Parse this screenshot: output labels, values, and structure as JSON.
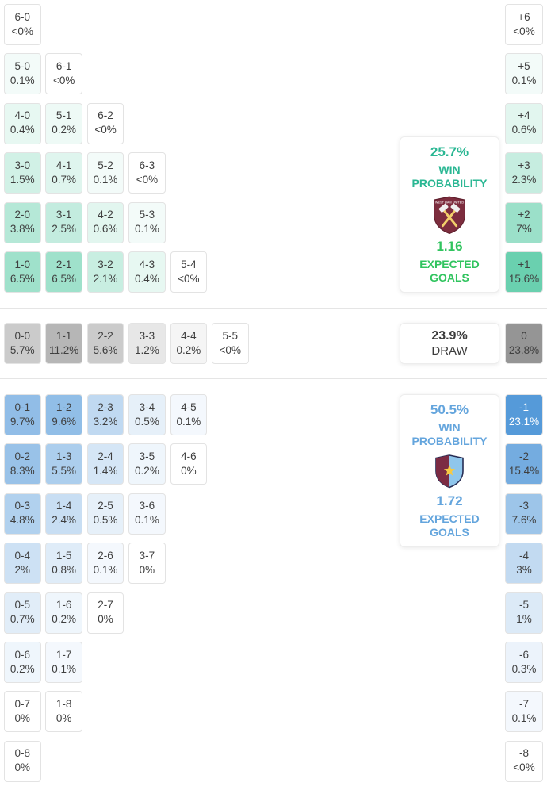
{
  "chart_data": {
    "type": "heatmap",
    "description": "Correct-score probability matrix with goal-difference column and win probability panels",
    "home": {
      "team": "West Ham United",
      "badge_text": "WEST HAM UNITED",
      "win_probability": "25.7%",
      "win_probability_label": "WIN PROBABILITY",
      "expected_goals": "1.16",
      "expected_goals_label": "EXPECTED GOALS",
      "accent": "#2fbe8f",
      "text_color": "#2ab793",
      "eg_color": "#31c45f",
      "rows": [
        [
          {
            "score": "6-0",
            "pct": "<0%",
            "value": 0
          }
        ],
        [
          {
            "score": "5-0",
            "pct": "0.1%",
            "value": 0.1
          },
          {
            "score": "6-1",
            "pct": "<0%",
            "value": 0
          }
        ],
        [
          {
            "score": "4-0",
            "pct": "0.4%",
            "value": 0.4
          },
          {
            "score": "5-1",
            "pct": "0.2%",
            "value": 0.2
          },
          {
            "score": "6-2",
            "pct": "<0%",
            "value": 0
          }
        ],
        [
          {
            "score": "3-0",
            "pct": "1.5%",
            "value": 1.5
          },
          {
            "score": "4-1",
            "pct": "0.7%",
            "value": 0.7
          },
          {
            "score": "5-2",
            "pct": "0.1%",
            "value": 0.1
          },
          {
            "score": "6-3",
            "pct": "<0%",
            "value": 0
          }
        ],
        [
          {
            "score": "2-0",
            "pct": "3.8%",
            "value": 3.8
          },
          {
            "score": "3-1",
            "pct": "2.5%",
            "value": 2.5
          },
          {
            "score": "4-2",
            "pct": "0.6%",
            "value": 0.6
          },
          {
            "score": "5-3",
            "pct": "0.1%",
            "value": 0.1
          }
        ],
        [
          {
            "score": "1-0",
            "pct": "6.5%",
            "value": 6.5
          },
          {
            "score": "2-1",
            "pct": "6.5%",
            "value": 6.5
          },
          {
            "score": "3-2",
            "pct": "2.1%",
            "value": 2.1
          },
          {
            "score": "4-3",
            "pct": "0.4%",
            "value": 0.4
          },
          {
            "score": "5-4",
            "pct": "<0%",
            "value": 0
          }
        ]
      ],
      "diffs": [
        {
          "diff": "+6",
          "pct": "<0%",
          "value": 0
        },
        {
          "diff": "+5",
          "pct": "0.1%",
          "value": 0.1
        },
        {
          "diff": "+4",
          "pct": "0.6%",
          "value": 0.6
        },
        {
          "diff": "+3",
          "pct": "2.3%",
          "value": 2.3
        },
        {
          "diff": "+2",
          "pct": "7%",
          "value": 7
        },
        {
          "diff": "+1",
          "pct": "15.6%",
          "value": 15.6
        }
      ]
    },
    "draw": {
      "probability": "23.9%",
      "label": "DRAW",
      "accent": "#878787",
      "text_color": "#3b3b3b",
      "rows": [
        [
          {
            "score": "0-0",
            "pct": "5.7%",
            "value": 5.7
          },
          {
            "score": "1-1",
            "pct": "11.2%",
            "value": 11.2
          },
          {
            "score": "2-2",
            "pct": "5.6%",
            "value": 5.6
          },
          {
            "score": "3-3",
            "pct": "1.2%",
            "value": 1.2
          },
          {
            "score": "4-4",
            "pct": "0.2%",
            "value": 0.2
          },
          {
            "score": "5-5",
            "pct": "<0%",
            "value": 0
          }
        ]
      ],
      "diffs": [
        {
          "diff": "0",
          "pct": "23.8%",
          "value": 23.8
        }
      ]
    },
    "away": {
      "team": "Aston Villa",
      "win_probability": "50.5%",
      "win_probability_label": "WIN PROBABILITY",
      "expected_goals": "1.72",
      "expected_goals_label": "EXPECTED GOALS",
      "accent": "#3c8bd4",
      "text_color": "#64a5dd",
      "eg_color": "#64a5dd",
      "white_text_over": 18,
      "rows": [
        [
          {
            "score": "0-1",
            "pct": "9.7%",
            "value": 9.7
          },
          {
            "score": "1-2",
            "pct": "9.6%",
            "value": 9.6
          },
          {
            "score": "2-3",
            "pct": "3.2%",
            "value": 3.2
          },
          {
            "score": "3-4",
            "pct": "0.5%",
            "value": 0.5
          },
          {
            "score": "4-5",
            "pct": "0.1%",
            "value": 0.1
          }
        ],
        [
          {
            "score": "0-2",
            "pct": "8.3%",
            "value": 8.3
          },
          {
            "score": "1-3",
            "pct": "5.5%",
            "value": 5.5
          },
          {
            "score": "2-4",
            "pct": "1.4%",
            "value": 1.4
          },
          {
            "score": "3-5",
            "pct": "0.2%",
            "value": 0.2
          },
          {
            "score": "4-6",
            "pct": "0%",
            "value": 0
          }
        ],
        [
          {
            "score": "0-3",
            "pct": "4.8%",
            "value": 4.8
          },
          {
            "score": "1-4",
            "pct": "2.4%",
            "value": 2.4
          },
          {
            "score": "2-5",
            "pct": "0.5%",
            "value": 0.5
          },
          {
            "score": "3-6",
            "pct": "0.1%",
            "value": 0.1
          }
        ],
        [
          {
            "score": "0-4",
            "pct": "2%",
            "value": 2
          },
          {
            "score": "1-5",
            "pct": "0.8%",
            "value": 0.8
          },
          {
            "score": "2-6",
            "pct": "0.1%",
            "value": 0.1
          },
          {
            "score": "3-7",
            "pct": "0%",
            "value": 0
          }
        ],
        [
          {
            "score": "0-5",
            "pct": "0.7%",
            "value": 0.7
          },
          {
            "score": "1-6",
            "pct": "0.2%",
            "value": 0.2
          },
          {
            "score": "2-7",
            "pct": "0%",
            "value": 0
          }
        ],
        [
          {
            "score": "0-6",
            "pct": "0.2%",
            "value": 0.2
          },
          {
            "score": "1-7",
            "pct": "0.1%",
            "value": 0.1
          }
        ],
        [
          {
            "score": "0-7",
            "pct": "0%",
            "value": 0
          },
          {
            "score": "1-8",
            "pct": "0%",
            "value": 0
          }
        ],
        [
          {
            "score": "0-8",
            "pct": "0%",
            "value": 0
          }
        ]
      ],
      "diffs": [
        {
          "diff": "-1",
          "pct": "23.1%",
          "value": 23.1
        },
        {
          "diff": "-2",
          "pct": "15.4%",
          "value": 15.4
        },
        {
          "diff": "-3",
          "pct": "7.6%",
          "value": 7.6
        },
        {
          "diff": "-4",
          "pct": "3%",
          "value": 3
        },
        {
          "diff": "-5",
          "pct": "1%",
          "value": 1
        },
        {
          "diff": "-6",
          "pct": "0.3%",
          "value": 0.3
        },
        {
          "diff": "-7",
          "pct": "0.1%",
          "value": 0.1
        },
        {
          "diff": "-8",
          "pct": "<0%",
          "value": 0
        }
      ]
    }
  }
}
